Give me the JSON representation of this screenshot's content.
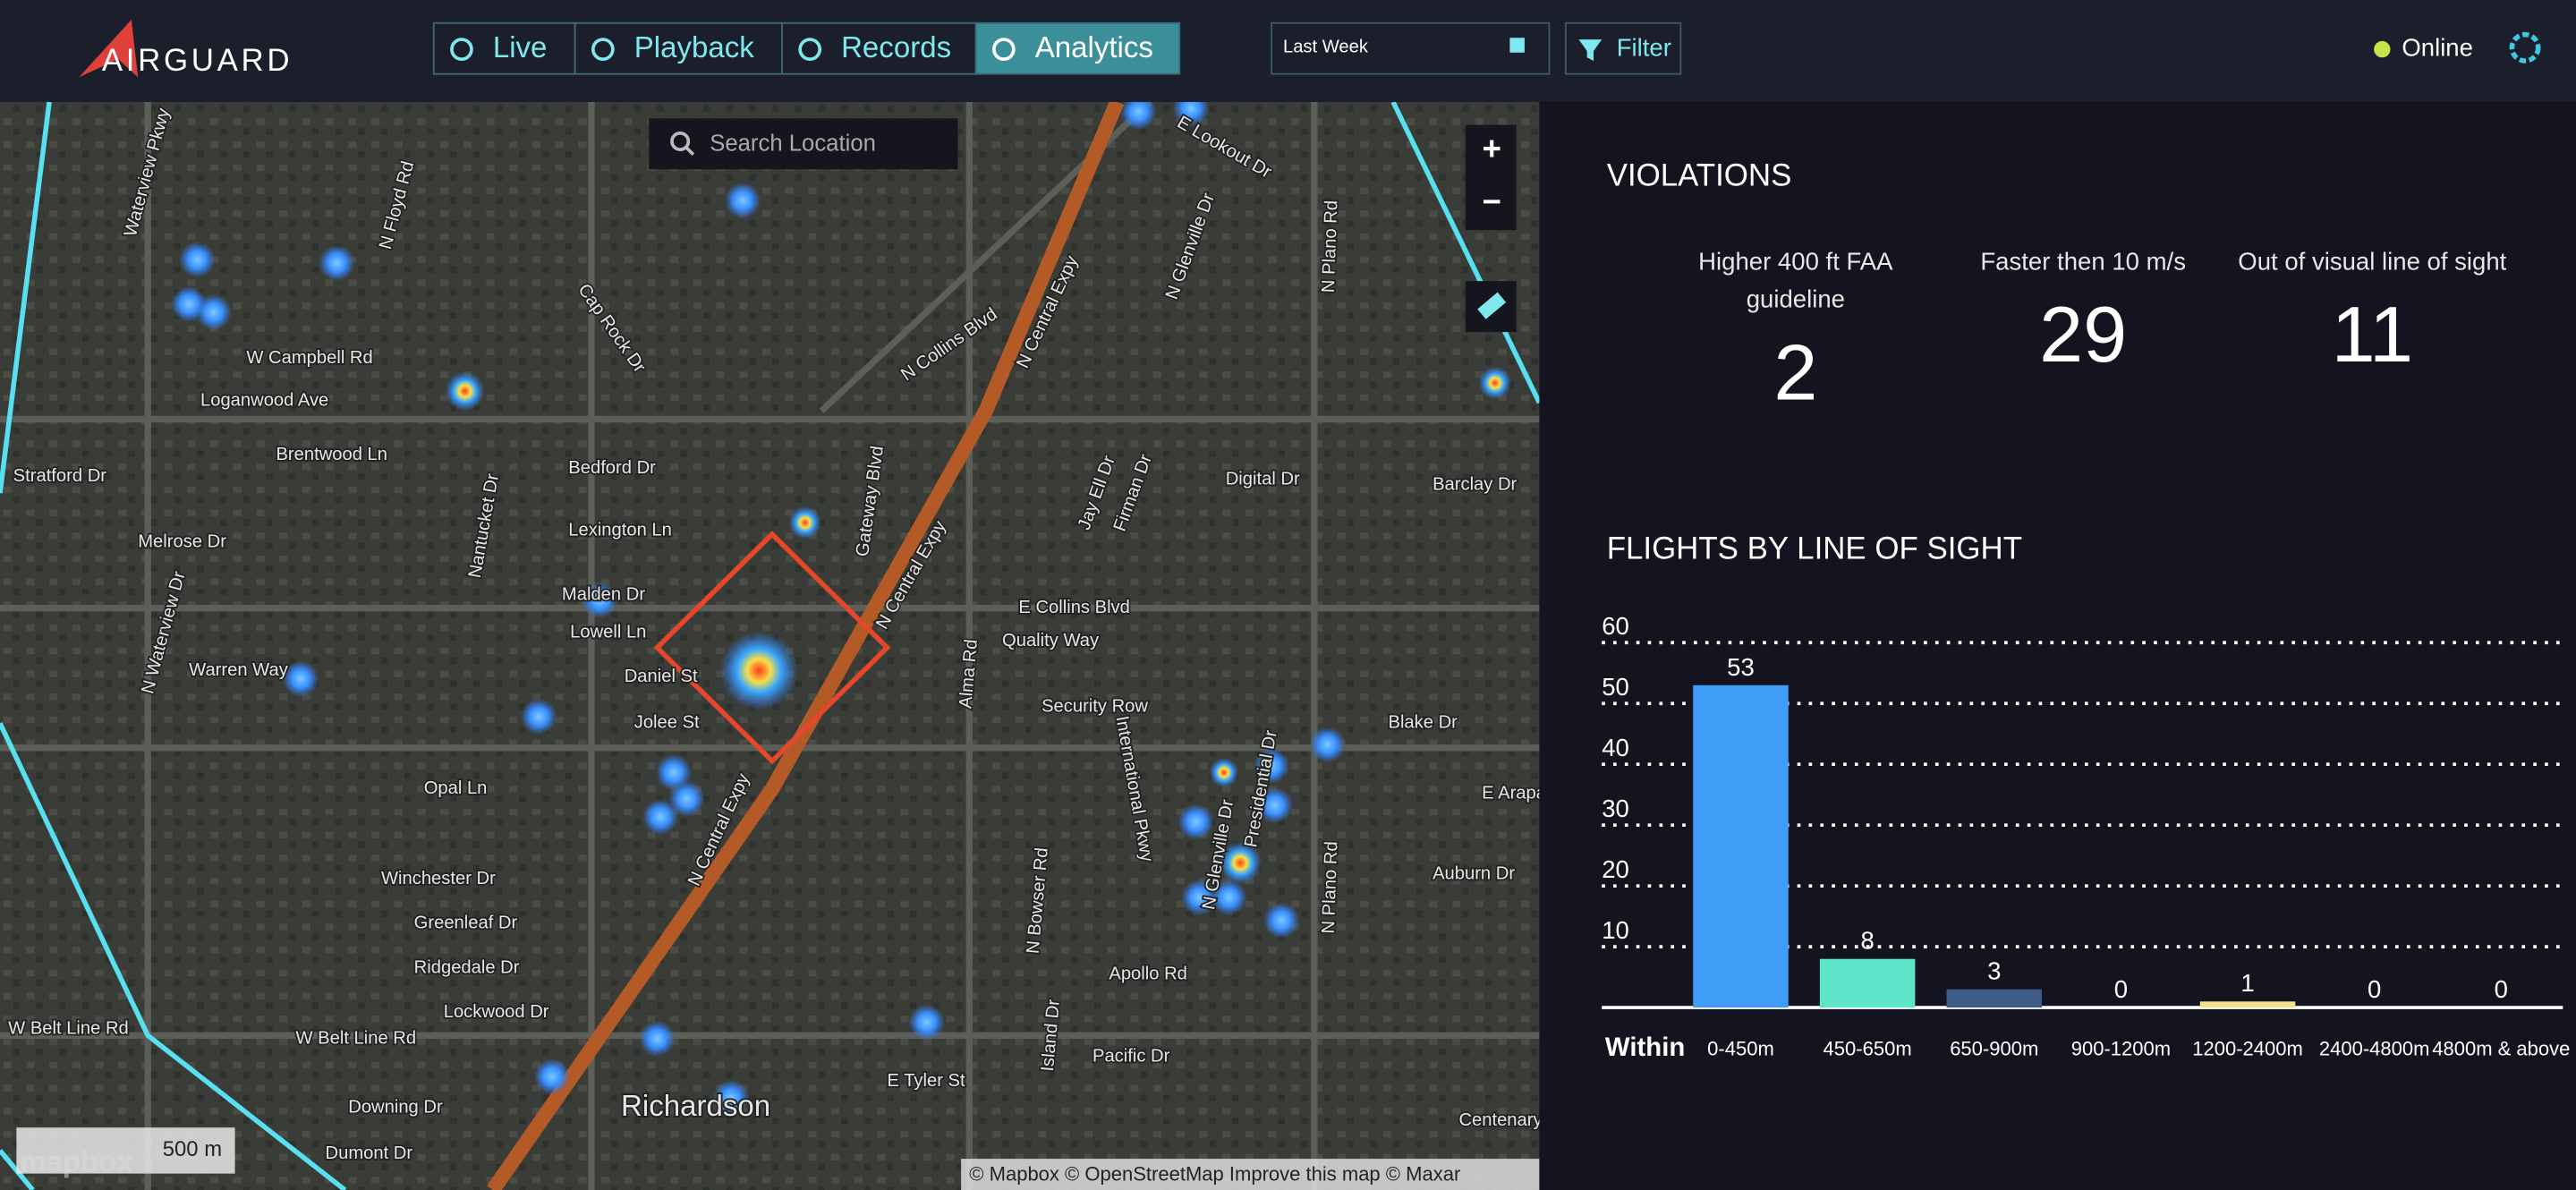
{
  "header": {
    "brand": "AIRGUARD",
    "tabs": [
      "Live",
      "Playback",
      "Records",
      "Analytics"
    ],
    "active_tab": "Analytics",
    "date_range": "Last Week",
    "filter": "Filter",
    "status": "Online"
  },
  "map": {
    "search_placeholder": "Search Location",
    "zoom_in": "+",
    "zoom_out": "−",
    "scale": "500 m",
    "logo": "mapbox",
    "attribution": "© Mapbox © OpenStreetMap Improve this map © Maxar",
    "labels": [
      "W Campbell Rd",
      "Loganwood Ave",
      "Brentwood Ln",
      "Stratford Dr",
      "Melrose Dr",
      "Warren Way",
      "Bedford Dr",
      "Lexington Ln",
      "Malden Dr",
      "Lowell Ln",
      "Daniel St",
      "Jolee St",
      "Opal Ln",
      "Winchester Dr",
      "Greenleaf Dr",
      "Ridgedale Dr",
      "Lockwood Dr",
      "W Belt Line Rd",
      "W Belt Line Rd",
      "Downing Dr",
      "Dumont Dr",
      "Richardson",
      "N Floyd Rd",
      "Cap Rock Dr",
      "Nantucket Dr",
      "N Collins Blvd",
      "N Central Expy",
      "N Central Expy",
      "N Central Expy",
      "Gateway Blvd",
      "E Collins Blvd",
      "Quality Way",
      "Security Row",
      "Alma Rd",
      "International Pkwy",
      "N Glenville Dr",
      "E Lookout Dr",
      "N Plano Rd",
      "Digital Dr",
      "Barclay Dr",
      "Blake Dr",
      "E Arapaho",
      "Auburn Dr",
      "Apollo Rd",
      "N Bowser Rd",
      "Island Dr",
      "Pacific Dr",
      "E Tyler St",
      "Centenary",
      "Jay Ell Dr",
      "Firman Dr",
      "N Glenville Dr",
      "Presidential Dr",
      "N Plano Rd",
      "N Waterview Dr",
      "Waterview Pkwy"
    ]
  },
  "violations": {
    "title": "VIOLATIONS",
    "items": [
      {
        "label": "Higher 400 ft FAA guideline",
        "value": 2
      },
      {
        "label": "Faster then 10 m/s",
        "value": 29
      },
      {
        "label": "Out of visual line of sight",
        "value": 11
      }
    ]
  },
  "chart_data": {
    "type": "bar",
    "title": "FLIGHTS BY LINE OF SIGHT",
    "x_label": "Within",
    "categories": [
      "0-450m",
      "450-650m",
      "650-900m",
      "900-1200m",
      "1200-2400m",
      "2400-4800m",
      "4800m & above"
    ],
    "values": [
      53,
      8,
      3,
      0,
      1,
      0,
      0
    ],
    "colors": [
      "#3f9cf7",
      "#5fe3c9",
      "#3e5c85",
      "#5a6b8a",
      "#f2e38c",
      "#8a8a8a",
      "#8a8a8a"
    ],
    "ylim": [
      0,
      60
    ],
    "yticks": [
      10,
      20,
      30,
      40,
      50,
      60
    ],
    "grid": true
  }
}
